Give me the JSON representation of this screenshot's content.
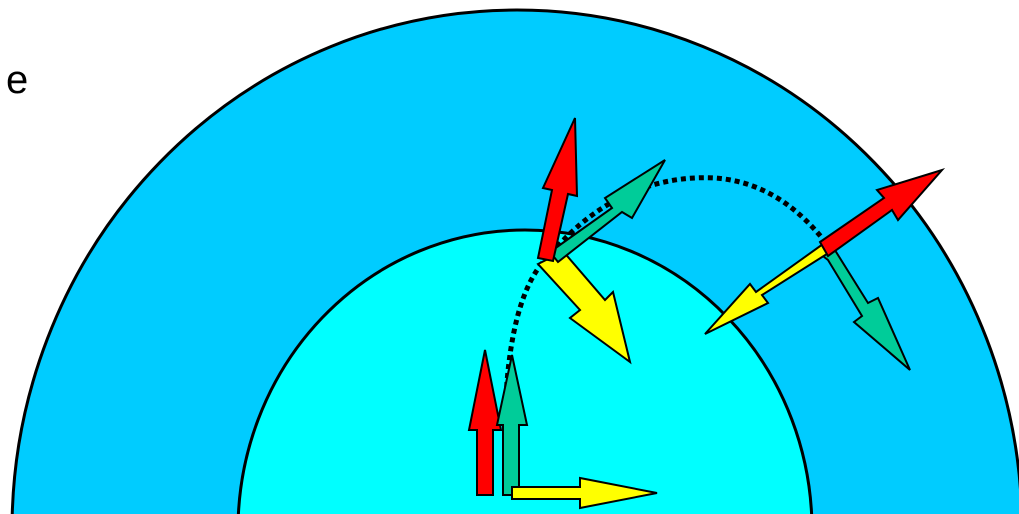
{
  "labels": {
    "left_edge_text": "e"
  },
  "colors": {
    "outer_region": "#00CCFF",
    "inner_region": "#00FFFF",
    "outline": "#000000",
    "arrow_red": "#FF0000",
    "arrow_green": "#00CC99",
    "arrow_yellow": "#FFFF00",
    "path_dots": "#000000"
  },
  "arrow_groups": [
    {
      "name": "bottom",
      "arrows": [
        "red-up",
        "green-up",
        "yellow-right"
      ]
    },
    {
      "name": "top",
      "arrows": [
        "red-up",
        "green-up-right",
        "yellow-down-right"
      ]
    },
    {
      "name": "right",
      "arrows": [
        "red-up-right",
        "green-down-right",
        "yellow-down-left"
      ]
    }
  ]
}
